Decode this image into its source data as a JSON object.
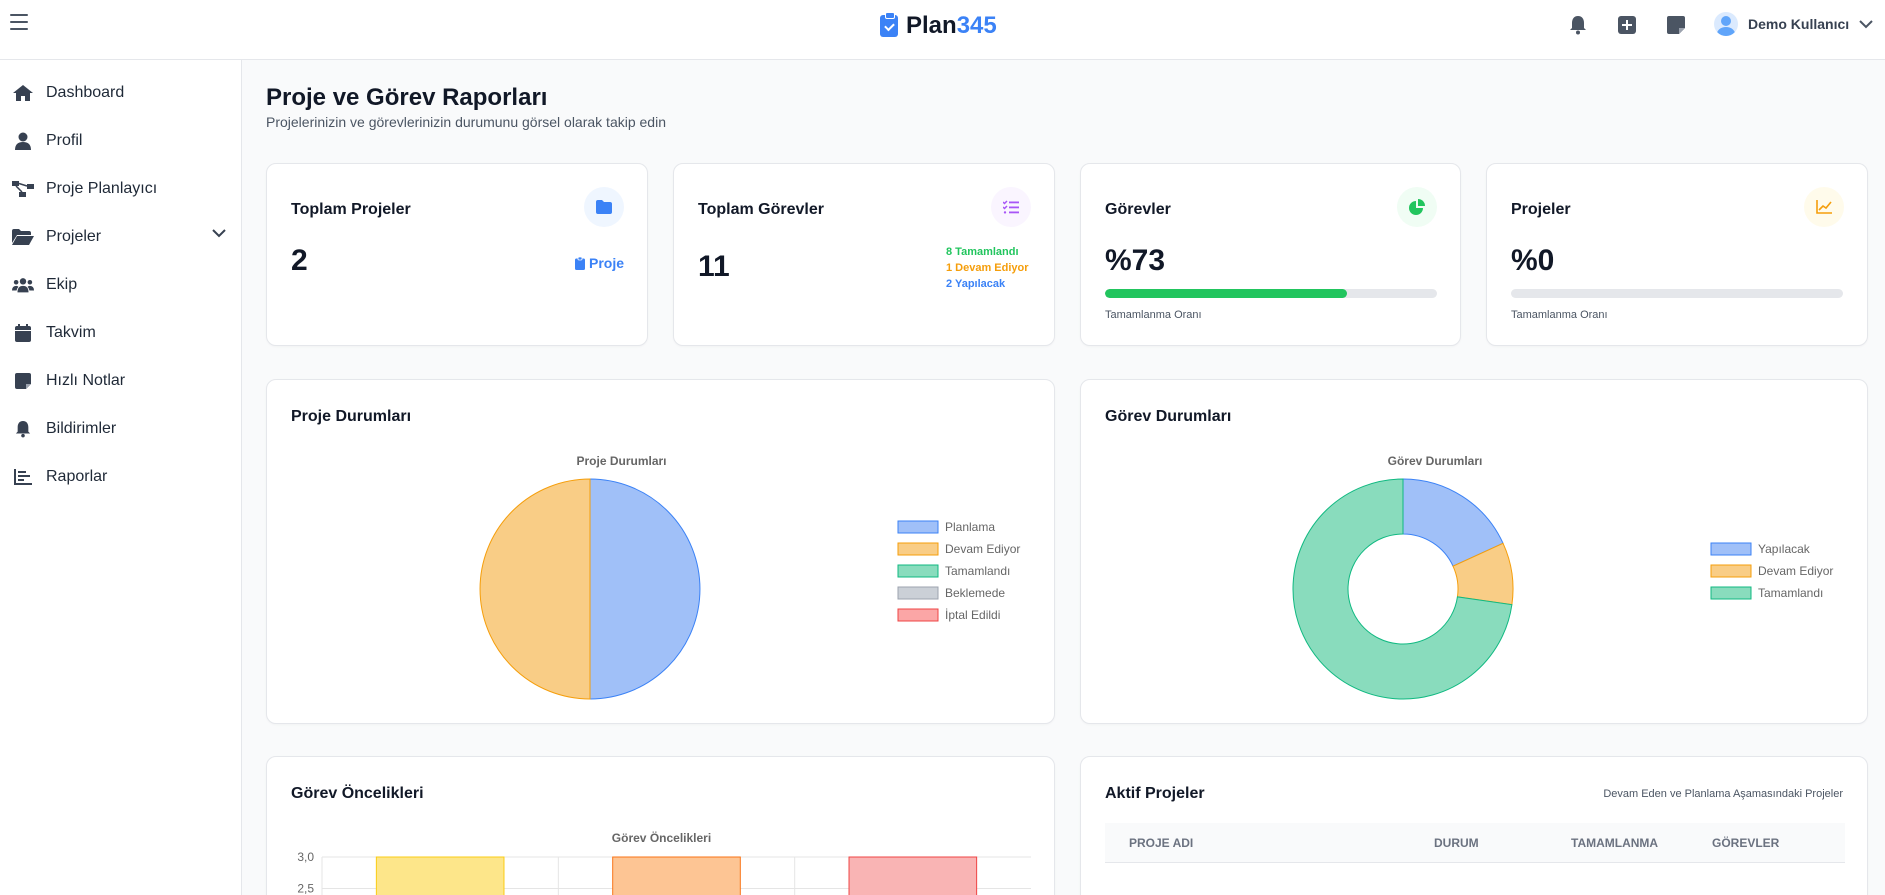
{
  "header": {
    "brand_prefix": "Plan",
    "brand_number": "345",
    "user_name": "Demo Kullanıcı",
    "icons": [
      "menu-icon",
      "bell-icon",
      "plus-square-icon",
      "sticky-note-icon",
      "user-avatar-icon",
      "chevron-down-icon"
    ]
  },
  "sidebar": {
    "items": [
      {
        "label": "Dashboard",
        "icon": "home-icon"
      },
      {
        "label": "Profil",
        "icon": "user-icon"
      },
      {
        "label": "Proje Planlayıcı",
        "icon": "project-diagram-icon"
      },
      {
        "label": "Projeler",
        "icon": "folder-open-icon"
      },
      {
        "label": "Ekip",
        "icon": "users-icon"
      },
      {
        "label": "Takvim",
        "icon": "calendar-icon"
      },
      {
        "label": "Hızlı Notlar",
        "icon": "sticky-note-icon"
      },
      {
        "label": "Bildirimler",
        "icon": "bell-icon"
      },
      {
        "label": "Raporlar",
        "icon": "chart-icon"
      }
    ]
  },
  "page": {
    "title": "Proje ve Görev Raporları",
    "subtitle": "Projelerinizin ve görevlerinizin durumunu görsel olarak takip edin"
  },
  "stats": {
    "projects": {
      "title": "Toplam Projeler",
      "value": "2",
      "link": "Proje"
    },
    "tasks": {
      "title": "Toplam Görevler",
      "value": "11",
      "done": "8 Tamamlandı",
      "in_progress": "1 Devam Ediyor",
      "todo": "2 Yapılacak"
    },
    "task_rate": {
      "title": "Görevler",
      "value": "%73",
      "progress": 0.73,
      "caption": "Tamamlanma Oranı"
    },
    "project_rate": {
      "title": "Projeler",
      "value": "%0",
      "progress": 0,
      "caption": "Tamamlanma Oranı"
    }
  },
  "colors": {
    "blue": "#3b82f6",
    "green": "#22c55e",
    "orange": "#f59e0b",
    "purple": "#a855f7"
  },
  "panels": {
    "project_status": {
      "title": "Proje Durumları"
    },
    "task_status": {
      "title": "Görev Durumları"
    },
    "task_priority": {
      "title": "Görev Öncelikleri"
    },
    "active_projects": {
      "title": "Aktif Projeler",
      "note": "Devam Eden ve Planlama Aşamasındaki Projeler",
      "columns": [
        "PROJE ADI",
        "DURUM",
        "TAMAMLANMA",
        "GÖREVLER"
      ]
    }
  },
  "chart_data": [
    {
      "type": "pie",
      "title": "Proje Durumları",
      "categories": [
        "Planlama",
        "Devam Ediyor",
        "Tamamlandı",
        "Beklemede",
        "İptal Edildi"
      ],
      "values": [
        1,
        1,
        0,
        0,
        0
      ],
      "colors": [
        "#a0c0f8",
        "#f9cd86",
        "#89dcbd",
        "#cbd0d7",
        "#fba6a6"
      ],
      "borders": [
        "#3b82f6",
        "#f59e0b",
        "#10b981",
        "#9ca3af",
        "#ef4444"
      ],
      "legend": "right"
    },
    {
      "type": "pie",
      "title": "Görev Durumları",
      "categories": [
        "Yapılacak",
        "Devam Ediyor",
        "Tamamlandı"
      ],
      "values": [
        2,
        1,
        8
      ],
      "colors": [
        "#a0c0f8",
        "#f9cd86",
        "#89dcbd"
      ],
      "borders": [
        "#3b82f6",
        "#f59e0b",
        "#10b981"
      ],
      "legend": "right",
      "donut": true
    },
    {
      "type": "bar",
      "title": "Görev Öncelikleri",
      "yticks": [
        "3,0",
        "2,5"
      ],
      "ylim": [
        0,
        3
      ],
      "values": [
        3,
        3,
        3
      ],
      "colors": [
        "#fde68a",
        "#fdc594",
        "#f9b4b4"
      ],
      "borders": [
        "#facc15",
        "#f97316",
        "#ef4444"
      ]
    }
  ]
}
